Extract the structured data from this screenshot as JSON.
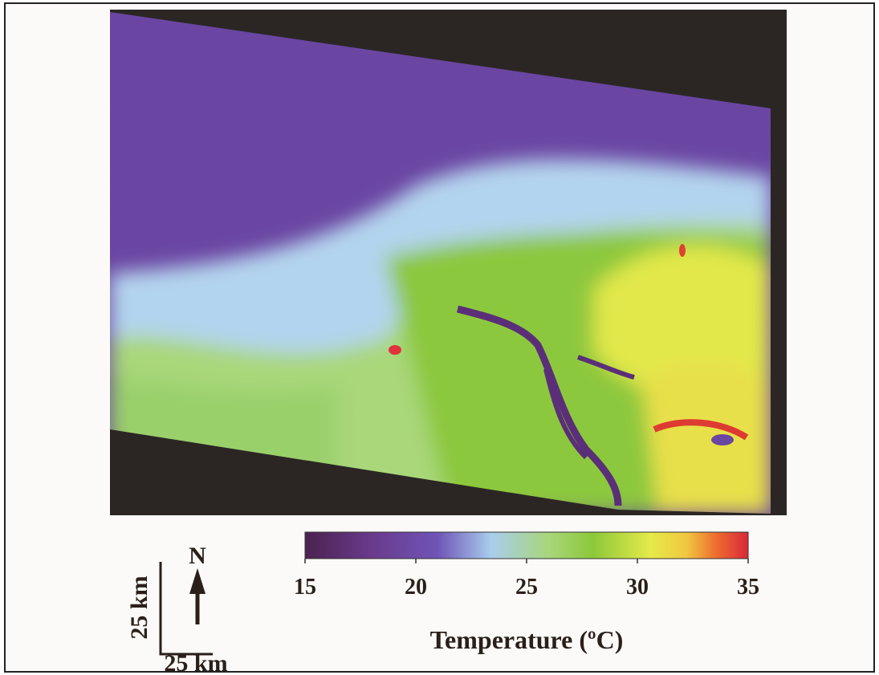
{
  "colorbar": {
    "label": "Temperature (ºC)",
    "range": [
      15,
      35
    ],
    "ticks": [
      15,
      20,
      25,
      30,
      35
    ]
  },
  "north": "N",
  "scale_bar": {
    "vertical_label": "25 km",
    "horizontal_label": "25 km"
  }
}
